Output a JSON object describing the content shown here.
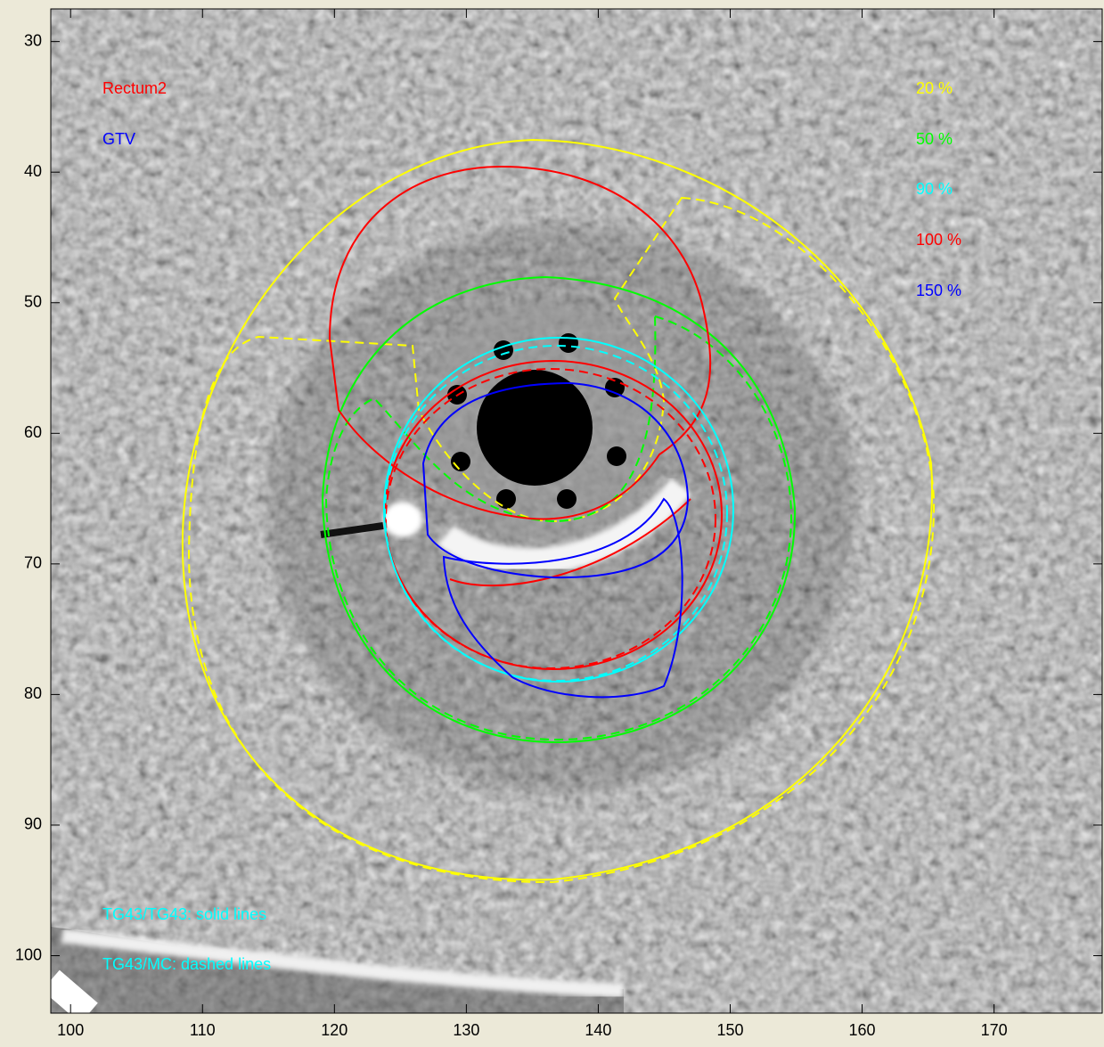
{
  "chart_data": {
    "type": "image",
    "xlim": [
      98.5,
      178.2
    ],
    "ylim": [
      27.5,
      104.4
    ],
    "y_reversed": true,
    "xticks": [
      100,
      110,
      120,
      130,
      140,
      150,
      160,
      170
    ],
    "yticks": [
      30,
      40,
      50,
      60,
      70,
      80,
      90,
      100
    ],
    "annotations": [
      {
        "text": "Rectum2",
        "color": "#ff0000"
      },
      {
        "text": "GTV",
        "color": "#0000ff"
      },
      {
        "text": "20 %",
        "color": "#ffff00"
      },
      {
        "text": "50 %",
        "color": "#00ff00"
      },
      {
        "text": "90 %",
        "color": "#00ffff"
      },
      {
        "text": "100 %",
        "color": "#ff0000"
      },
      {
        "text": "150 %",
        "color": "#0000ff"
      },
      {
        "text": "TG43/TG43: solid lines",
        "color": "#00ffff"
      },
      {
        "text": "TG43/MC: dashed lines",
        "color": "#00ffff"
      }
    ]
  }
}
